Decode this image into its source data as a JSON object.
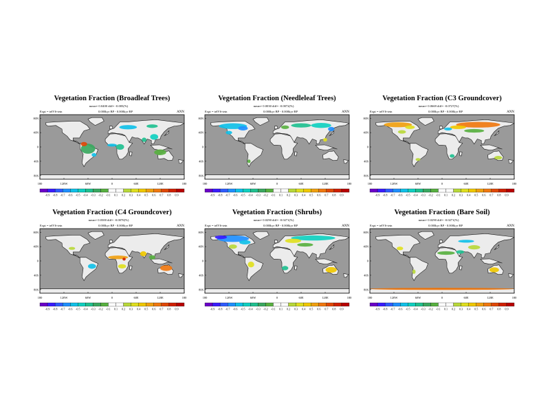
{
  "figure": {
    "period": "ANN"
  },
  "colors": {
    "ocean": "#9a9a9a",
    "land": "#ececec",
    "scale": [
      "#6a00c8",
      "#3a1cff",
      "#2f5bff",
      "#1f8fff",
      "#10c0e8",
      "#10d0c0",
      "#20c090",
      "#3aa860",
      "#58b040",
      "#ffffff",
      "#ffffff",
      "#b8d83a",
      "#e0e020",
      "#f0c800",
      "#f0a010",
      "#f07810",
      "#e04808",
      "#d02000",
      "#b80000"
    ]
  },
  "panels": [
    {
      "title": "Vegetation Fraction (Broadleaf Trees)",
      "stats": "mean= 0.0400 diff= -0.005(%)",
      "expt": "Expt = teIV6-tetn",
      "time": "0.000kyr BP - 0.000kyr BP",
      "period": "ANN",
      "lat_labels": [
        "80N",
        "40N",
        "0",
        "40S",
        "80S"
      ],
      "lon_labels": [
        "180",
        "120W",
        "60W",
        "0",
        "60E",
        "120E",
        "180"
      ],
      "scale_labels": [
        "-0.9",
        "-0.8",
        "-0.7",
        "-0.6",
        "-0.5",
        "-0.4",
        "-0.3",
        "-0.2",
        "-0.1",
        "0.1",
        "0.2",
        "0.3",
        "0.4",
        "0.5",
        "0.6",
        "0.7",
        "0.8",
        "0.9"
      ],
      "patches": [
        {
          "lon": -60,
          "lat": -5,
          "rx": 18,
          "ry": 14,
          "c": "#3aa860"
        },
        {
          "lon": -70,
          "lat": 8,
          "rx": 8,
          "ry": 6,
          "c": "#e04808"
        },
        {
          "lon": 20,
          "lat": 0,
          "rx": 10,
          "ry": 8,
          "c": "#20c090"
        },
        {
          "lon": 0,
          "lat": 5,
          "rx": 12,
          "ry": 4,
          "c": "#10c0e8"
        },
        {
          "lon": 120,
          "lat": -15,
          "rx": 15,
          "ry": 8,
          "c": "#58b040"
        },
        {
          "lon": 105,
          "lat": 28,
          "rx": 10,
          "ry": 8,
          "c": "#10d0c0"
        },
        {
          "lon": 80,
          "lat": 20,
          "rx": 6,
          "ry": 6,
          "c": "#20c090"
        },
        {
          "lon": 40,
          "lat": 55,
          "rx": 22,
          "ry": 6,
          "c": "#10c0e8"
        },
        {
          "lon": -45,
          "lat": -22,
          "rx": 6,
          "ry": 5,
          "c": "#10c0e8"
        },
        {
          "lon": 100,
          "lat": 58,
          "rx": 14,
          "ry": 5,
          "c": "#20c090"
        }
      ]
    },
    {
      "title": "Vegetation Fraction (Needleleaf Trees)",
      "stats": "mean= 0.0030 diff= -0.0072(%)",
      "expt": "Expt = teIV6-tetn",
      "time": "0.000kyr BP - 0.000kyr BP",
      "period": "ANN",
      "lat_labels": [
        "80N",
        "40N",
        "0",
        "40S",
        "80S"
      ],
      "lon_labels": [
        "180",
        "120W",
        "60W",
        "0",
        "60E",
        "120E",
        "180"
      ],
      "scale_labels": [
        "-0.9",
        "-0.8",
        "-0.7",
        "-0.6",
        "-0.5",
        "-0.4",
        "-0.3",
        "-0.2",
        "-0.1",
        "0.1",
        "0.2",
        "0.3",
        "0.4",
        "0.5",
        "0.6",
        "0.7",
        "0.8",
        "0.9"
      ],
      "patches": [
        {
          "lon": -110,
          "lat": 58,
          "rx": 35,
          "ry": 8,
          "c": "#10c0e8"
        },
        {
          "lon": -85,
          "lat": 52,
          "rx": 12,
          "ry": 6,
          "c": "#1f8fff"
        },
        {
          "lon": 60,
          "lat": 60,
          "rx": 25,
          "ry": 6,
          "c": "#20c090"
        },
        {
          "lon": 110,
          "lat": 60,
          "rx": 25,
          "ry": 7,
          "c": "#10d0c0"
        },
        {
          "lon": 20,
          "lat": 55,
          "rx": 10,
          "ry": 5,
          "c": "#58b040"
        },
        {
          "lon": 135,
          "lat": 50,
          "rx": 8,
          "ry": 6,
          "c": "#1f8fff"
        },
        {
          "lon": -120,
          "lat": 40,
          "rx": 8,
          "ry": 5,
          "c": "#10c0e8"
        },
        {
          "lon": 120,
          "lat": 20,
          "rx": 5,
          "ry": 5,
          "c": "#e0e020"
        },
        {
          "lon": -70,
          "lat": -40,
          "rx": 4,
          "ry": 5,
          "c": "#58b040"
        }
      ]
    },
    {
      "title": "Vegetation Fraction (C3 Groundcover)",
      "stats": "mean= 0.0669 diff= -0.0727(%)",
      "expt": "Expt = teIV6-tetn",
      "time": "0.000kyr BP - 0.000kyr BP",
      "period": "ANN",
      "lat_labels": [
        "80N",
        "40N",
        "0",
        "40S",
        "80S"
      ],
      "lon_labels": [
        "180",
        "120W",
        "60W",
        "0",
        "60E",
        "120E",
        "180"
      ],
      "scale_labels": [
        "-0.9",
        "-0.8",
        "-0.7",
        "-0.6",
        "-0.5",
        "-0.4",
        "-0.3",
        "-0.2",
        "-0.1",
        "0.1",
        "0.2",
        "0.3",
        "0.4",
        "0.5",
        "0.6",
        "0.7",
        "0.8",
        "0.9"
      ],
      "patches": [
        {
          "lon": -110,
          "lat": 62,
          "rx": 35,
          "ry": 7,
          "c": "#f0a010"
        },
        {
          "lon": -80,
          "lat": 55,
          "rx": 12,
          "ry": 5,
          "c": "#e0e020"
        },
        {
          "lon": 90,
          "lat": 62,
          "rx": 55,
          "ry": 8,
          "c": "#f07810"
        },
        {
          "lon": 40,
          "lat": 55,
          "rx": 20,
          "ry": 5,
          "c": "#f0c800"
        },
        {
          "lon": 80,
          "lat": 45,
          "rx": 25,
          "ry": 5,
          "c": "#58b040"
        },
        {
          "lon": -100,
          "lat": 42,
          "rx": 10,
          "ry": 5,
          "c": "#b8d83a"
        },
        {
          "lon": 15,
          "lat": 50,
          "rx": 10,
          "ry": 4,
          "c": "#10c0e8"
        },
        {
          "lon": 140,
          "lat": -30,
          "rx": 10,
          "ry": 5,
          "c": "#b8d83a"
        },
        {
          "lon": 25,
          "lat": -25,
          "rx": 6,
          "ry": 5,
          "c": "#20c090"
        },
        {
          "lon": -60,
          "lat": -35,
          "rx": 6,
          "ry": 4,
          "c": "#b8d83a"
        }
      ]
    },
    {
      "title": "Vegetation Fraction (C4 Groundcover)",
      "stats": "mean= 0.0300 diff= -0.0070(%)",
      "expt": "Expt = teIV6-tetn",
      "time": "0.000kyr BP - 0.000kyr BP",
      "period": "ANN",
      "lat_labels": [
        "80N",
        "40N",
        "0",
        "40S",
        "80S"
      ],
      "lon_labels": [
        "180",
        "120W",
        "60W",
        "0",
        "60E",
        "120E",
        "180"
      ],
      "scale_labels": [
        "-0.9",
        "-0.8",
        "-0.7",
        "-0.6",
        "-0.5",
        "-0.4",
        "-0.3",
        "-0.2",
        "-0.1",
        "0.1",
        "0.2",
        "0.3",
        "0.4",
        "0.5",
        "0.6",
        "0.7",
        "0.8",
        "0.9"
      ],
      "patches": [
        {
          "lon": 15,
          "lat": 10,
          "rx": 25,
          "ry": 5,
          "c": "#f0a010"
        },
        {
          "lon": 25,
          "lat": -15,
          "rx": 10,
          "ry": 6,
          "c": "#e0e020"
        },
        {
          "lon": 135,
          "lat": -20,
          "rx": 15,
          "ry": 8,
          "c": "#f07810"
        },
        {
          "lon": 78,
          "lat": 20,
          "rx": 8,
          "ry": 7,
          "c": "#f0c800"
        },
        {
          "lon": -50,
          "lat": -15,
          "rx": 10,
          "ry": 7,
          "c": "#10c0e8"
        },
        {
          "lon": 100,
          "lat": 10,
          "rx": 8,
          "ry": 6,
          "c": "#58b040"
        },
        {
          "lon": -100,
          "lat": 35,
          "rx": 8,
          "ry": 4,
          "c": "#b8d83a"
        },
        {
          "lon": 30,
          "lat": 5,
          "rx": 4,
          "ry": 4,
          "c": "#d02000"
        }
      ]
    },
    {
      "title": "Vegetation Fraction (Shrubs)",
      "stats": "mean= 0.0290 diff= -0.0271(%)",
      "expt": "Expt = teIV6-tetn",
      "time": "0.000kyr BP - 0.000kyr BP",
      "period": "ANN",
      "lat_labels": [
        "80N",
        "40N",
        "0",
        "40S",
        "80S"
      ],
      "lon_labels": [
        "180",
        "120W",
        "60W",
        "0",
        "60E",
        "120E",
        "180"
      ],
      "scale_labels": [
        "-0.9",
        "-0.8",
        "-0.7",
        "-0.6",
        "-0.5",
        "-0.4",
        "-0.3",
        "-0.2",
        "-0.1",
        "0.1",
        "0.2",
        "0.3",
        "0.4",
        "0.5",
        "0.6",
        "0.7",
        "0.8",
        "0.9"
      ],
      "patches": [
        {
          "lon": -110,
          "lat": 62,
          "rx": 40,
          "ry": 9,
          "c": "#1f8fff"
        },
        {
          "lon": -140,
          "lat": 66,
          "rx": 15,
          "ry": 5,
          "c": "#3a1cff"
        },
        {
          "lon": -80,
          "lat": 52,
          "rx": 14,
          "ry": 6,
          "c": "#10c0e8"
        },
        {
          "lon": 90,
          "lat": 64,
          "rx": 55,
          "ry": 7,
          "c": "#10d0c0"
        },
        {
          "lon": 40,
          "lat": 56,
          "rx": 20,
          "ry": 6,
          "c": "#e0e020"
        },
        {
          "lon": 70,
          "lat": 45,
          "rx": 20,
          "ry": 5,
          "c": "#58b040"
        },
        {
          "lon": -110,
          "lat": 40,
          "rx": 10,
          "ry": 6,
          "c": "#b8d83a"
        },
        {
          "lon": 135,
          "lat": -25,
          "rx": 14,
          "ry": 8,
          "c": "#f0c800"
        },
        {
          "lon": 20,
          "lat": -20,
          "rx": 8,
          "ry": 6,
          "c": "#20c090"
        },
        {
          "lon": -65,
          "lat": -10,
          "rx": 8,
          "ry": 8,
          "c": "#e0e020"
        }
      ]
    },
    {
      "title": "Vegetation Fraction (Bare Soil)",
      "stats": "mean= 0.0290 diff= -0.0271(%)",
      "expt": "Expt = teIV6-tetn",
      "time": "0.000kyr BP - 0.000kyr BP",
      "period": "ANN",
      "lat_labels": [
        "80N",
        "40N",
        "0",
        "40S",
        "80S"
      ],
      "lon_labels": [
        "180",
        "120W",
        "60W",
        "0",
        "60E",
        "120E",
        "180"
      ],
      "scale_labels": [
        "-0.9",
        "-0.8",
        "-0.7",
        "-0.6",
        "-0.5",
        "-0.4",
        "-0.3",
        "-0.2",
        "-0.1",
        "0.1",
        "0.2",
        "0.3",
        "0.4",
        "0.5",
        "0.6",
        "0.7",
        "0.8",
        "0.9"
      ],
      "patches": [
        {
          "lon": 10,
          "lat": 22,
          "rx": 22,
          "ry": 5,
          "c": "#58b040"
        },
        {
          "lon": 45,
          "lat": 25,
          "rx": 10,
          "ry": 5,
          "c": "#20c090"
        },
        {
          "lon": 80,
          "lat": 38,
          "rx": 15,
          "ry": 6,
          "c": "#b8d83a"
        },
        {
          "lon": 130,
          "lat": -25,
          "rx": 12,
          "ry": 7,
          "c": "#f0c800"
        },
        {
          "lon": -105,
          "lat": 35,
          "rx": 8,
          "ry": 5,
          "c": "#e0e020"
        },
        {
          "lon": 60,
          "lat": 55,
          "rx": 20,
          "ry": 4,
          "c": "#10c0e8"
        },
        {
          "lon": 0,
          "lat": -78,
          "rx": 180,
          "ry": 3,
          "c": "#f07810"
        },
        {
          "lon": -70,
          "lat": -30,
          "rx": 4,
          "ry": 6,
          "c": "#b8d83a"
        }
      ]
    }
  ]
}
